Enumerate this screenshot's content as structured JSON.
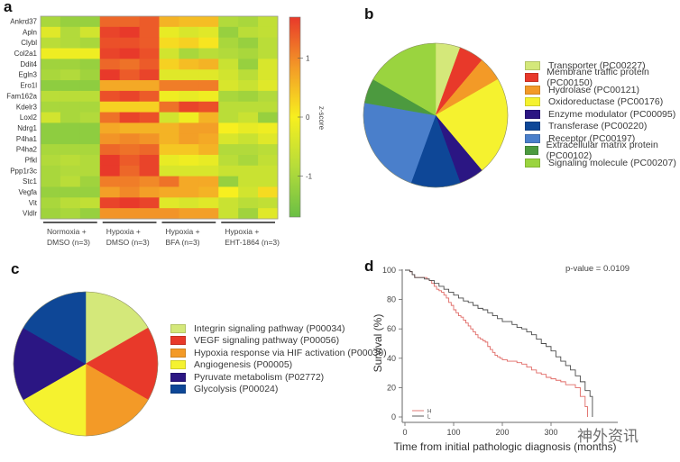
{
  "panels": {
    "a": {
      "letter": "a"
    },
    "b": {
      "letter": "b"
    },
    "c": {
      "letter": "c"
    },
    "d": {
      "letter": "d"
    }
  },
  "chart_data": [
    {
      "id": "a",
      "type": "heatmap",
      "title": "",
      "rows": [
        "Ankrd37",
        "Apln",
        "Clybl",
        "Col2a1",
        "Ddit4",
        "Egln3",
        "Ero1l",
        "Fam162a",
        "Kdelr3",
        "Loxl2",
        "Ndrg1",
        "P4ha1",
        "P4ha2",
        "Pfkl",
        "Ppp1r3c",
        "Stc1",
        "Vegfa",
        "Vit",
        "Vldlr"
      ],
      "groups": [
        {
          "label_line1": "Normoxia +",
          "label_line2": "DMSO (n=3)",
          "n": 3
        },
        {
          "label_line1": "Hypoxia +",
          "label_line2": "DMSO (n=3)",
          "n": 3
        },
        {
          "label_line1": "Hypoxia +",
          "label_line2": "BFA (n=3)",
          "n": 3
        },
        {
          "label_line1": "Hypoxia +",
          "label_line2": "EHT-1864 (n=3)",
          "n": 3
        }
      ],
      "values": [
        [
          -1.0,
          -1.2,
          -1.2,
          1.3,
          1.3,
          1.4,
          0.6,
          0.5,
          0.5,
          -0.9,
          -1.0,
          -0.7
        ],
        [
          -0.3,
          -0.9,
          -0.5,
          1.6,
          1.7,
          1.4,
          -0.2,
          -0.4,
          -0.3,
          -1.2,
          -0.8,
          -0.7
        ],
        [
          -0.8,
          -0.9,
          -1.0,
          1.5,
          1.5,
          1.4,
          0.2,
          0.3,
          0.1,
          -1.0,
          -1.2,
          -0.8
        ],
        [
          -0.1,
          -0.1,
          -0.1,
          1.6,
          1.7,
          1.5,
          -0.5,
          -1.0,
          -0.8,
          -0.9,
          -1.0,
          -0.8
        ],
        [
          -1.1,
          -1.1,
          -1.2,
          1.3,
          1.2,
          1.4,
          0.3,
          0.5,
          0.6,
          -0.6,
          -1.2,
          -0.4
        ],
        [
          -1.0,
          -0.9,
          -1.1,
          1.7,
          1.4,
          1.6,
          -0.3,
          -0.3,
          -0.3,
          -0.5,
          -0.8,
          -0.4
        ],
        [
          -1.3,
          -1.3,
          -1.3,
          0.7,
          0.7,
          0.7,
          1.1,
          1.1,
          1.1,
          -0.4,
          -0.6,
          -0.3
        ],
        [
          -0.8,
          -0.8,
          -0.8,
          1.5,
          1.6,
          1.4,
          -0.1,
          -0.2,
          -0.1,
          -1.0,
          -1.1,
          -0.9
        ],
        [
          -1.0,
          -1.0,
          -1.0,
          0.3,
          0.3,
          0.3,
          1.2,
          1.6,
          1.5,
          -0.8,
          -0.8,
          -0.8
        ],
        [
          -0.5,
          -1.0,
          -0.9,
          1.2,
          1.6,
          1.5,
          -0.5,
          -0.1,
          0.6,
          -0.8,
          -0.6,
          -1.2
        ],
        [
          -1.3,
          -1.3,
          -1.3,
          0.7,
          0.6,
          0.6,
          0.6,
          0.8,
          0.8,
          0.0,
          -0.2,
          -0.1
        ],
        [
          -1.3,
          -1.3,
          -1.3,
          0.9,
          1.0,
          0.9,
          0.6,
          0.8,
          0.7,
          -0.4,
          -0.6,
          -0.3
        ],
        [
          -1.0,
          -1.0,
          -1.0,
          1.3,
          1.2,
          1.3,
          0.4,
          0.4,
          0.6,
          -0.9,
          -0.9,
          -0.8
        ],
        [
          -0.9,
          -0.8,
          -0.9,
          1.7,
          1.4,
          1.6,
          -0.2,
          -0.1,
          -0.2,
          -0.8,
          -1.0,
          -0.7
        ],
        [
          -1.0,
          -0.9,
          -0.9,
          1.7,
          1.3,
          1.6,
          -0.4,
          -0.4,
          -0.4,
          -0.6,
          -0.6,
          -0.6
        ],
        [
          -1.0,
          -0.8,
          -1.1,
          1.1,
          1.1,
          1.0,
          1.2,
          0.7,
          0.7,
          -1.2,
          -0.6,
          -0.6
        ],
        [
          -1.2,
          -1.2,
          -1.2,
          0.8,
          1.0,
          0.8,
          0.7,
          0.7,
          0.6,
          0.0,
          -0.5,
          0.2
        ],
        [
          -1.0,
          -0.8,
          -0.7,
          1.6,
          1.7,
          1.6,
          -0.3,
          -0.4,
          -0.3,
          -0.6,
          -0.8,
          -0.7
        ],
        [
          -1.1,
          -1.0,
          -1.2,
          0.9,
          0.9,
          0.9,
          0.9,
          0.8,
          0.8,
          -0.6,
          -1.1,
          -0.3
        ]
      ],
      "colorbar": {
        "label": "z-score",
        "range": [
          -1.7,
          1.7
        ],
        "ticks": [
          "1",
          "0",
          "-1"
        ],
        "tick_values": [
          1,
          0,
          -1
        ],
        "colors": [
          "#6abf45",
          "#b6dc3a",
          "#f7ef1f",
          "#f39a27",
          "#e8392a"
        ]
      }
    },
    {
      "id": "b",
      "type": "pie",
      "title": "",
      "labels": [
        "Transporter (PC00227)",
        "Membrane traffic protein (PC00150)",
        "Hydrolase (PC00121)",
        "Oxidoreductase (PC00176)",
        "Enzyme modulator (PC00095)",
        "Transferase (PC00220)",
        "Receptor (PC00197)",
        "Extracellular matrix protein (PC00102)",
        "Signaling molecule (PC00207)"
      ],
      "values": [
        1,
        1,
        1,
        4,
        1,
        2,
        4,
        1,
        3
      ],
      "colors": [
        "#d4e87a",
        "#e8392a",
        "#f39a27",
        "#f5f22f",
        "#2b1683",
        "#0e4797",
        "#4a7fcb",
        "#4c9a3f",
        "#9ad43f"
      ],
      "legend_position": "right"
    },
    {
      "id": "c",
      "type": "pie",
      "title": "",
      "labels": [
        "Integrin signaling pathway (P00034)",
        "VEGF signaling pathway (P00056)",
        "Hypoxia response via HIF activation (P00030)",
        "Angiogenesis (P00005)",
        "Pyruvate metabolism (P02772)",
        "Glycolysis (P00024)"
      ],
      "values": [
        1,
        1,
        1,
        1,
        1,
        1
      ],
      "colors": [
        "#d4e87a",
        "#e8392a",
        "#f39a27",
        "#f5f22f",
        "#2b1683",
        "#0e4797"
      ],
      "legend_position": "right"
    },
    {
      "id": "d",
      "type": "line",
      "title": "",
      "xlabel": "Time from initial pathologic diagnosis (months)",
      "ylabel": "Survival (%)",
      "xlim": [
        0,
        400
      ],
      "ylim": [
        0,
        100
      ],
      "xticks": [
        0,
        100,
        200,
        300
      ],
      "yticks": [
        0,
        20,
        40,
        60,
        80,
        100
      ],
      "annotation": "p-value = 0.0109",
      "legend_position": "bottom-left",
      "series": [
        {
          "name": "H",
          "color": "#e06a66",
          "x": [
            0,
            5,
            10,
            15,
            20,
            30,
            40,
            45,
            50,
            55,
            60,
            65,
            70,
            75,
            80,
            85,
            90,
            95,
            100,
            105,
            110,
            115,
            120,
            125,
            130,
            135,
            140,
            145,
            150,
            155,
            160,
            165,
            170,
            175,
            180,
            185,
            190,
            195,
            200,
            210,
            220,
            230,
            240,
            250,
            260,
            270,
            280,
            290,
            300,
            310,
            320,
            330,
            340,
            350,
            360,
            370,
            375
          ],
          "y": [
            100,
            100,
            99,
            97,
            95,
            95,
            95,
            94,
            93,
            91,
            89,
            87,
            86,
            85,
            83,
            81,
            78,
            76,
            73,
            71,
            69,
            68,
            66,
            64,
            62,
            60,
            58,
            56,
            54,
            53,
            52,
            51,
            48,
            46,
            44,
            42,
            41,
            40,
            39,
            38,
            38,
            37,
            36,
            34,
            32,
            30,
            29,
            27,
            26,
            25,
            24,
            22,
            22,
            20,
            14,
            7,
            7
          ]
        },
        {
          "name": "L",
          "color": "#4a4a4a",
          "x": [
            0,
            5,
            10,
            15,
            20,
            30,
            40,
            45,
            50,
            60,
            70,
            80,
            90,
            100,
            110,
            120,
            130,
            140,
            150,
            160,
            170,
            180,
            190,
            200,
            210,
            220,
            230,
            240,
            250,
            260,
            270,
            280,
            290,
            300,
            310,
            320,
            330,
            340,
            350,
            360,
            370,
            380,
            385
          ],
          "y": [
            100,
            100,
            99,
            97,
            95,
            95,
            94,
            94,
            93,
            91,
            89,
            87,
            85,
            83,
            81,
            79,
            78,
            76,
            74,
            73,
            71,
            69,
            67,
            65,
            65,
            63,
            61,
            60,
            58,
            56,
            53,
            50,
            48,
            45,
            41,
            38,
            35,
            32,
            28,
            24,
            18,
            14,
            8
          ]
        }
      ]
    }
  ],
  "legends": {
    "b": [
      "Transporter (PC00227)",
      "Membrane traffic protein (PC00150)",
      "Hydrolase (PC00121)",
      "Oxidoreductase (PC00176)",
      "Enzyme modulator (PC00095)",
      "Transferase (PC00220)",
      "Receptor (PC00197)",
      "Extracellular matrix protein (PC00102)",
      "Signaling molecule (PC00207)"
    ],
    "c": [
      "Integrin signaling pathway (P00034)",
      "VEGF signaling pathway (P00056)",
      "Hypoxia response via HIF activation (P00030)",
      "Angiogenesis (P00005)",
      "Pyruvate metabolism (P02772)",
      "Glycolysis (P00024)"
    ]
  },
  "watermark": "神外资讯"
}
